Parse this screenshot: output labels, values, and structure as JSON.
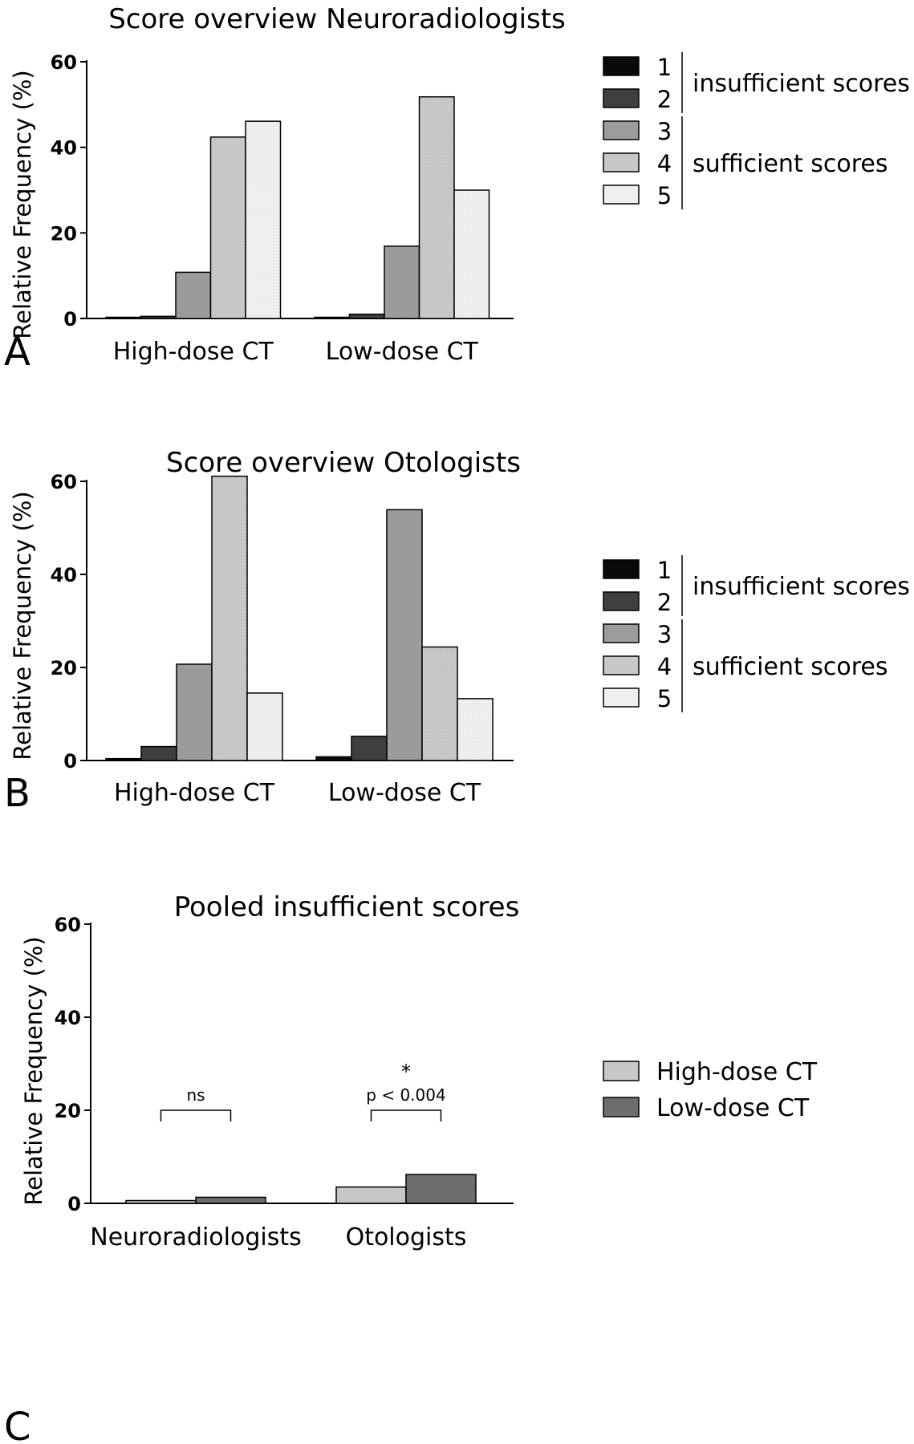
{
  "legend_scores": {
    "items": [
      "1",
      "2",
      "3",
      "4",
      "5"
    ],
    "colors": [
      "#0a0a0a",
      "#3f3f3f",
      "#9c9c9c",
      "#c8c8c8",
      "#efefef"
    ],
    "group_insufficient": "insufficient scores",
    "group_sufficient": "sufficient scores"
  },
  "chart_data": [
    {
      "type": "bar",
      "panel": "A",
      "title": "Score overview Neuroradiologists",
      "ylabel": "Relative Frequency (%)",
      "ylim": [
        0,
        60
      ],
      "yticks": [
        0,
        20,
        40,
        60
      ],
      "categories": [
        "High-dose CT",
        "Low-dose CT"
      ],
      "series": [
        {
          "name": "1",
          "values": [
            0.2,
            0.2
          ]
        },
        {
          "name": "2",
          "values": [
            0.5,
            1.0
          ]
        },
        {
          "name": "3",
          "values": [
            10.8,
            16.9
          ]
        },
        {
          "name": "4",
          "values": [
            42.4,
            51.8
          ]
        },
        {
          "name": "5",
          "values": [
            46.1,
            30.0
          ]
        }
      ]
    },
    {
      "type": "bar",
      "panel": "B",
      "title": "Score overview Otologists",
      "ylabel": "Relative Frequency (%)",
      "ylim": [
        0,
        60
      ],
      "yticks": [
        0,
        20,
        40,
        60
      ],
      "categories": [
        "High-dose CT",
        "Low-dose CT"
      ],
      "series": [
        {
          "name": "1",
          "values": [
            0.4,
            0.8
          ]
        },
        {
          "name": "2",
          "values": [
            3.0,
            5.2
          ]
        },
        {
          "name": "3",
          "values": [
            20.7,
            53.9
          ]
        },
        {
          "name": "4",
          "values": [
            61.1,
            24.4
          ]
        },
        {
          "name": "5",
          "values": [
            14.5,
            13.3
          ]
        }
      ]
    },
    {
      "type": "bar",
      "panel": "C",
      "title": "Pooled insufficient scores",
      "ylabel": "Relative Frequency (%)",
      "ylim": [
        0,
        60
      ],
      "yticks": [
        0,
        20,
        40,
        60
      ],
      "categories": [
        "Neuroradiologists",
        "Otologists"
      ],
      "series": [
        {
          "name": "High-dose CT",
          "values": [
            0.6,
            3.5
          ],
          "color": "#c8c8c8"
        },
        {
          "name": "Low-dose CT",
          "values": [
            1.3,
            6.2
          ],
          "color": "#6e6e6e"
        }
      ],
      "annotations": [
        {
          "category": "Neuroradiologists",
          "text": "ns",
          "star": ""
        },
        {
          "category": "Otologists",
          "text": "p < 0.004",
          "star": "*"
        }
      ],
      "bracket_value": 20
    }
  ]
}
